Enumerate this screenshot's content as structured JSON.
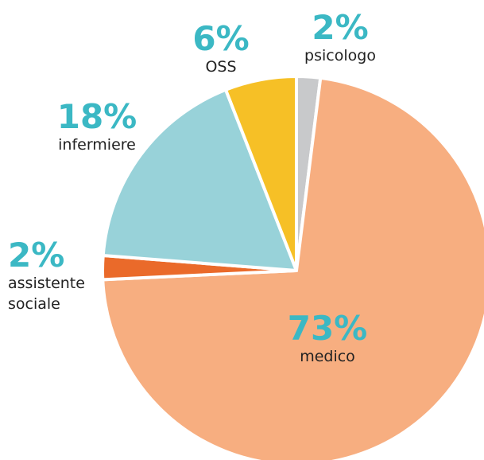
{
  "chart_data": {
    "type": "pie",
    "categories": [
      "psicologo",
      "medico",
      "assistente sociale",
      "infermiere",
      "OSS"
    ],
    "values": [
      2,
      73,
      2,
      18,
      6
    ],
    "value_labels": [
      "2%",
      "73%",
      "2%",
      "18%",
      "6%"
    ],
    "colors": [
      "#c8c9cb",
      "#f7ae80",
      "#ea6a2a",
      "#98d2d9",
      "#f6c026"
    ]
  }
}
